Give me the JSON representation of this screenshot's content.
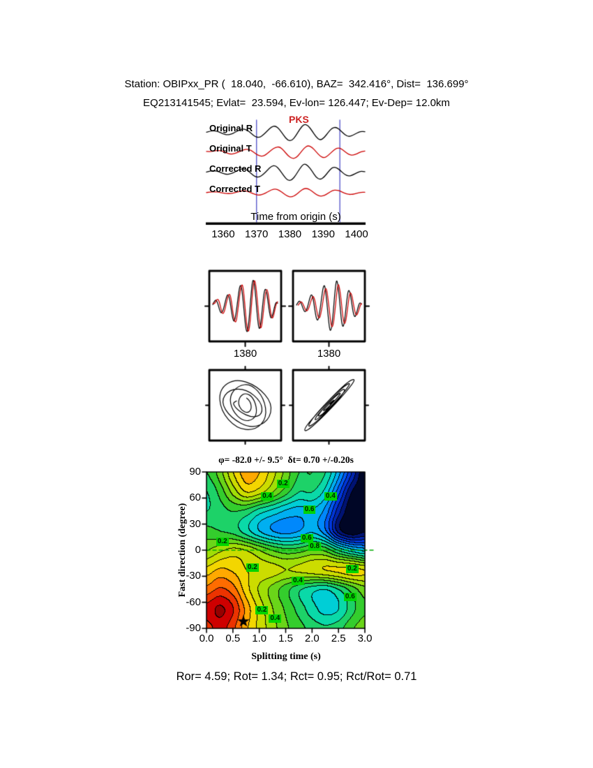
{
  "header": {
    "line1": "Station: OBIPxx_PR (  18.040,  -66.610), BAZ=  342.416°, Dist=  136.699°",
    "line2": "EQ213141545; Evlat=  23.594, Ev-lon= 126.447; Ev-Dep= 12.0km"
  },
  "phase_label": {
    "text": "PKS",
    "color": "#cc2222"
  },
  "results": {
    "text": "Ror= 4.59; Rot= 1.34; Rct= 0.95; Rct/Rot= 0.71"
  },
  "wave_boxes": [
    {
      "label": "1380",
      "black": "original_r",
      "red": "original_t",
      "red_scale": 1.0,
      "red_shift": 0
    },
    {
      "label": "1380",
      "black": "corrected_r",
      "red": "corrected_r",
      "red_scale": 0.85,
      "red_shift": 1
    }
  ],
  "hodograms": [
    {
      "x": "original_r",
      "y": "original_t",
      "lag": 3
    },
    {
      "x": "corrected_r",
      "y": "corrected_t",
      "lag": 0
    }
  ],
  "chart_data": [
    {
      "id": "seismograms",
      "type": "line",
      "xlabel": "Time from origin (s)",
      "x_range": [
        1355,
        1402.5
      ],
      "x_ticks": [
        "1360",
        "1370",
        "1380",
        "1390",
        "1400"
      ],
      "phase_markers": [
        1370,
        1395
      ],
      "marker_color": "#5a5acc",
      "series": [
        {
          "id": "original_r",
          "label": "Original R",
          "color": "#000000",
          "values": [
            0.05,
            0.18,
            0.22,
            0.1,
            -0.12,
            -0.25,
            -0.18,
            0.02,
            0.28,
            0.42,
            0.3,
            -0.08,
            -0.45,
            -0.55,
            -0.25,
            0.2,
            0.65,
            0.75,
            0.35,
            -0.3,
            -0.85,
            -0.9,
            -0.35,
            0.4,
            0.95,
            0.8,
            0.2,
            -0.5,
            -0.85,
            -0.55,
            0.05,
            0.55,
            0.6,
            0.25,
            -0.2,
            -0.45,
            -0.3,
            -0.05,
            0.15,
            0.1
          ]
        },
        {
          "id": "original_t",
          "label": "Original T",
          "color": "#cc0000",
          "values": [
            0.08,
            0.05,
            0.15,
            0.2,
            0.12,
            -0.1,
            -0.22,
            -0.15,
            0.05,
            0.25,
            0.35,
            0.22,
            -0.15,
            -0.4,
            -0.45,
            -0.15,
            0.25,
            0.55,
            0.6,
            0.2,
            -0.35,
            -0.7,
            -0.65,
            -0.15,
            0.45,
            0.75,
            0.55,
            0.05,
            -0.45,
            -0.65,
            -0.35,
            0.1,
            0.45,
            0.45,
            0.1,
            -0.25,
            -0.35,
            -0.18,
            0.05,
            0.12
          ]
        },
        {
          "id": "corrected_r",
          "label": "Corrected R",
          "color": "#000000",
          "values": [
            0.04,
            0.15,
            0.2,
            0.08,
            -0.1,
            -0.22,
            -0.15,
            0.05,
            0.3,
            0.45,
            0.28,
            -0.12,
            -0.48,
            -0.52,
            -0.2,
            0.25,
            0.7,
            0.78,
            0.3,
            -0.35,
            -0.9,
            -0.85,
            -0.3,
            0.45,
            1.0,
            0.75,
            0.15,
            -0.55,
            -0.8,
            -0.5,
            0.08,
            0.58,
            0.55,
            0.2,
            -0.22,
            -0.42,
            -0.28,
            -0.04,
            0.14,
            0.08
          ]
        },
        {
          "id": "corrected_t",
          "label": "Corrected T",
          "color": "#cc0000",
          "values": [
            0.02,
            0.07,
            0.1,
            0.06,
            -0.03,
            -0.1,
            -0.09,
            0.0,
            0.13,
            0.23,
            0.18,
            -0.01,
            -0.21,
            -0.28,
            -0.16,
            0.07,
            0.32,
            0.42,
            0.24,
            -0.1,
            -0.41,
            -0.48,
            -0.25,
            0.14,
            0.47,
            0.45,
            0.17,
            -0.2,
            -0.4,
            -0.32,
            -0.04,
            0.24,
            0.31,
            0.16,
            -0.06,
            -0.2,
            -0.18,
            -0.06,
            0.05,
            0.05
          ]
        }
      ]
    },
    {
      "id": "splitting_error_surface",
      "type": "heatmap",
      "title": "φ= -82.0 +/- 9.5°  δt= 0.70 +/-0.20s",
      "xlabel": "Splitting time (s)",
      "ylabel": "Fast direction (degree)",
      "x_range": [
        0,
        3
      ],
      "y_range": [
        -90,
        90
      ],
      "x_ticks": [
        "0.0",
        "0.5",
        "1.0",
        "1.5",
        "2.0",
        "2.5",
        "3.0"
      ],
      "y_ticks": [
        "90",
        "60",
        "30",
        "0",
        "-30",
        "-60",
        "-90"
      ],
      "contour_interval": 0.05,
      "grid_x": [
        0,
        0.25,
        0.5,
        0.75,
        1.0,
        1.25,
        1.5,
        1.75,
        2.0,
        2.25,
        2.5,
        2.75,
        3.0
      ],
      "grid_y": [
        90,
        67.5,
        45,
        22.5,
        0,
        -22.5,
        -45,
        -67.5,
        -90
      ],
      "values": [
        [
          0.5,
          0.42,
          0.3,
          0.22,
          0.25,
          0.33,
          0.42,
          0.5,
          0.5,
          0.55,
          0.68,
          0.85,
          1.0
        ],
        [
          0.55,
          0.48,
          0.38,
          0.3,
          0.33,
          0.4,
          0.48,
          0.55,
          0.55,
          0.62,
          0.78,
          0.95,
          1.0
        ],
        [
          0.55,
          0.52,
          0.5,
          0.52,
          0.58,
          0.62,
          0.66,
          0.68,
          0.66,
          0.72,
          0.88,
          1.0,
          1.0
        ],
        [
          0.48,
          0.5,
          0.52,
          0.58,
          0.65,
          0.7,
          0.72,
          0.7,
          0.66,
          0.74,
          0.92,
          1.0,
          0.96
        ],
        [
          0.4,
          0.36,
          0.33,
          0.35,
          0.4,
          0.45,
          0.48,
          0.47,
          0.44,
          0.46,
          0.55,
          0.62,
          0.66
        ],
        [
          0.28,
          0.24,
          0.26,
          0.3,
          0.32,
          0.33,
          0.35,
          0.34,
          0.32,
          0.3,
          0.29,
          0.28,
          0.3
        ],
        [
          0.18,
          0.14,
          0.18,
          0.28,
          0.36,
          0.42,
          0.48,
          0.54,
          0.58,
          0.6,
          0.55,
          0.48,
          0.42
        ],
        [
          0.08,
          0.04,
          0.1,
          0.22,
          0.32,
          0.4,
          0.46,
          0.52,
          0.58,
          0.62,
          0.6,
          0.52,
          0.46
        ],
        [
          0.12,
          0.08,
          0.14,
          0.24,
          0.32,
          0.38,
          0.44,
          0.48,
          0.52,
          0.54,
          0.52,
          0.46,
          0.42
        ]
      ],
      "colormap": [
        [
          0.0,
          "#7a0000"
        ],
        [
          0.08,
          "#d40000"
        ],
        [
          0.16,
          "#ff5a00"
        ],
        [
          0.26,
          "#ffd400"
        ],
        [
          0.36,
          "#b0e000"
        ],
        [
          0.48,
          "#2fcc2f"
        ],
        [
          0.6,
          "#00ddc8"
        ],
        [
          0.7,
          "#00a0ff"
        ],
        [
          0.8,
          "#0040ee"
        ],
        [
          0.9,
          "#001a99"
        ],
        [
          1.0,
          "#000000"
        ]
      ],
      "label_bg": "#00d400",
      "zero_line_color": "#00aa00",
      "contour_labels": [
        {
          "value": "0.2",
          "x": 1.45,
          "y": 76
        },
        {
          "value": "0.4",
          "x": 1.15,
          "y": 62
        },
        {
          "value": "0.4",
          "x": 2.35,
          "y": 62
        },
        {
          "value": "0.6",
          "x": 1.95,
          "y": 47
        },
        {
          "value": "0.6",
          "x": 1.9,
          "y": 14
        },
        {
          "value": "0.8",
          "x": 2.05,
          "y": 4
        },
        {
          "value": "0.2",
          "x": 0.3,
          "y": 10
        },
        {
          "value": "0.2",
          "x": 0.87,
          "y": -20
        },
        {
          "value": "0.2",
          "x": 2.76,
          "y": -22
        },
        {
          "value": "0.4",
          "x": 1.73,
          "y": -35
        },
        {
          "value": "0.6",
          "x": 2.72,
          "y": -54
        },
        {
          "value": "0.2",
          "x": 1.05,
          "y": -69
        },
        {
          "value": "0.4",
          "x": 1.3,
          "y": -79
        }
      ],
      "best_fit": {
        "phi_deg": -82.0,
        "phi_err": 9.5,
        "dt_s": 0.7,
        "dt_err": 0.2,
        "marker": "star"
      }
    }
  ]
}
